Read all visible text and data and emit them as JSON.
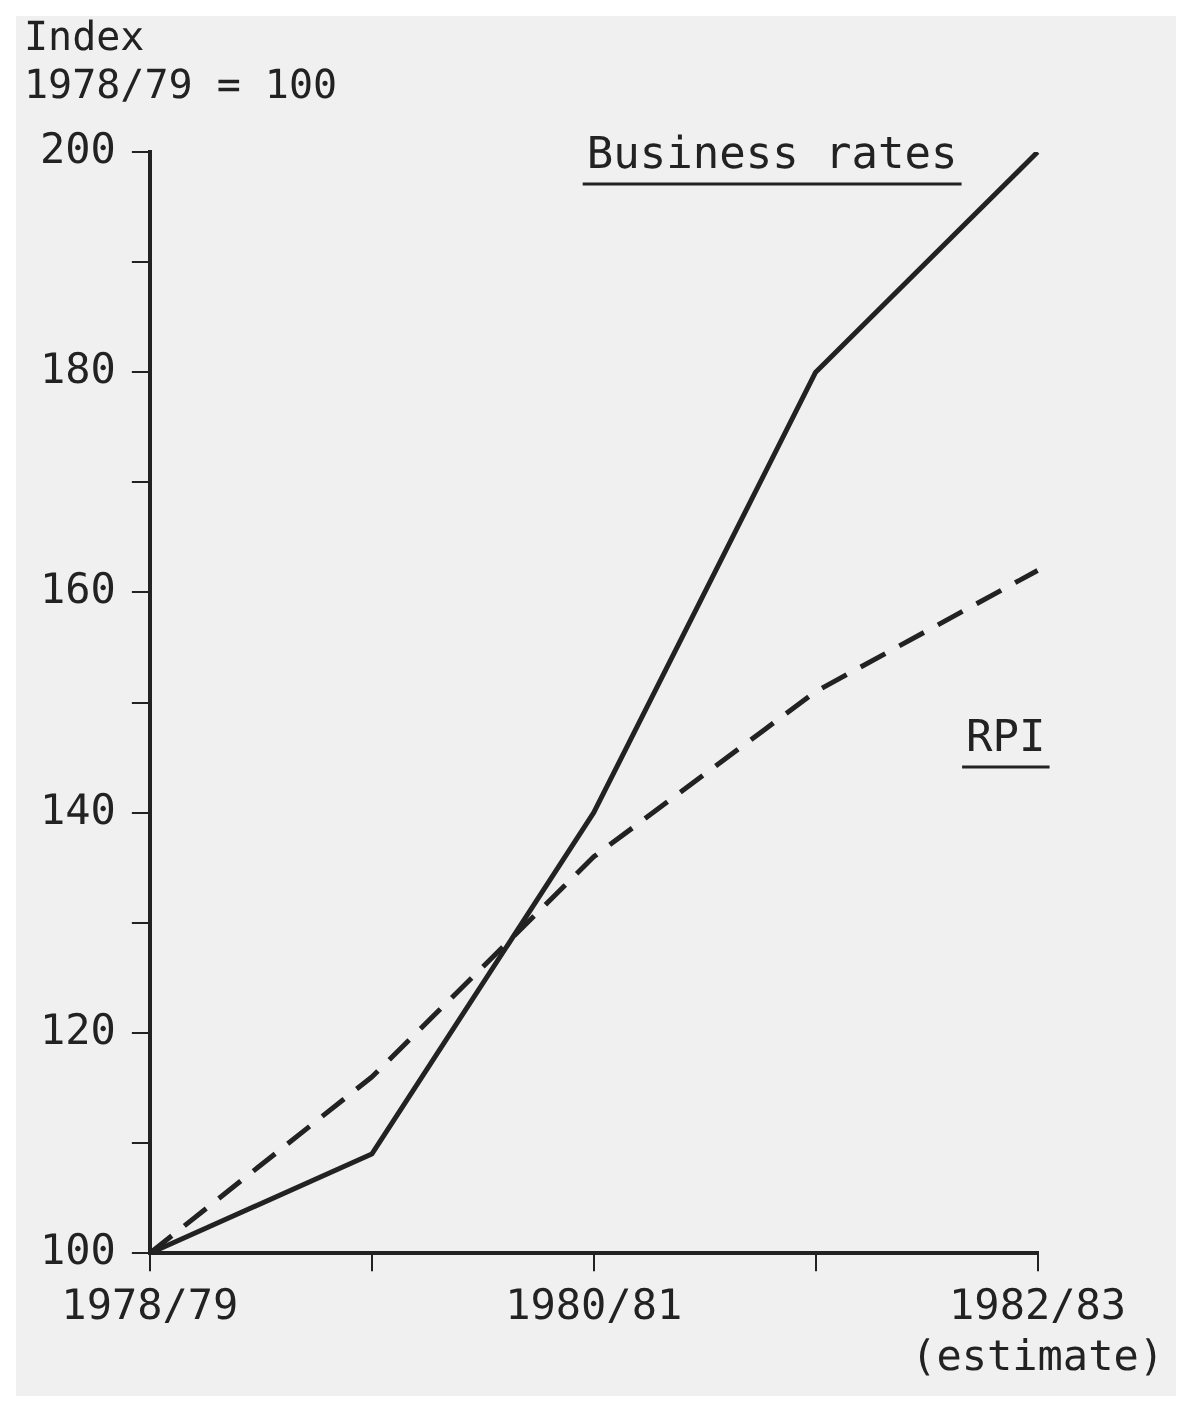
{
  "chart_data": {
    "type": "line",
    "ylabel": "Index\n1978/79 = 100",
    "categories": [
      "1978/79",
      null,
      "1980/81",
      null,
      "1982/83\n(estimate)"
    ],
    "series": [
      {
        "name": "Business rates",
        "color": "#222222",
        "values": [
          100,
          109,
          140,
          180,
          200
        ],
        "line_style": "solid"
      },
      {
        "name": "RPI",
        "color": "#222222",
        "values": [
          100,
          116,
          136,
          151,
          162
        ],
        "line_style": "dashed"
      }
    ],
    "ylim": [
      100,
      200
    ],
    "yticks": [
      100,
      {
        "value": 110,
        "label": null
      },
      120,
      {
        "value": 130,
        "label": null
      },
      140,
      {
        "value": 150,
        "label": null
      },
      160,
      {
        "value": 170,
        "label": null
      },
      180,
      {
        "value": 190,
        "label": null
      },
      200
    ],
    "grid": false,
    "legend": false,
    "marker": "none"
  }
}
